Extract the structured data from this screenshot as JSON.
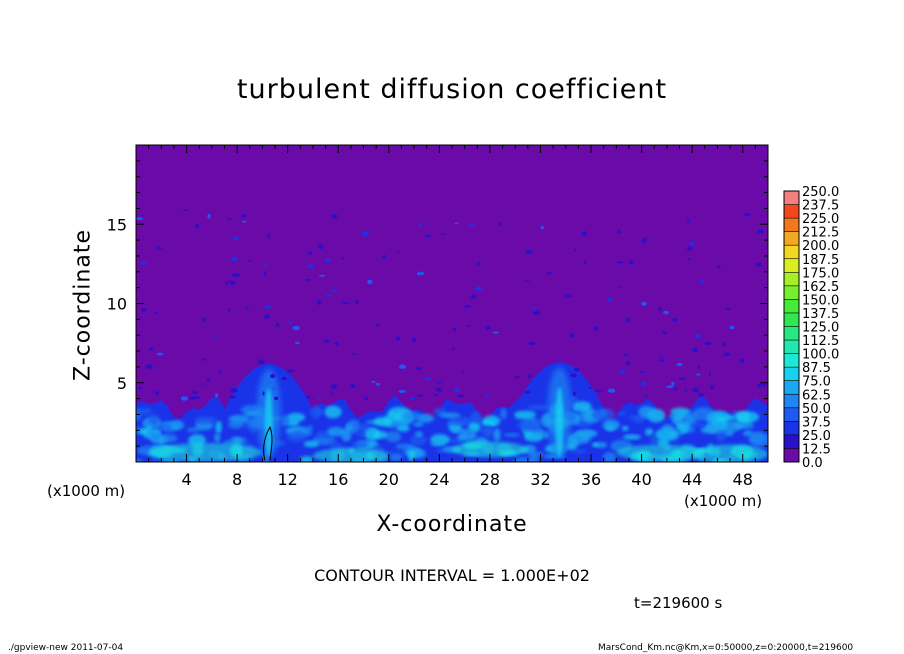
{
  "chart_data": {
    "type": "heatmap",
    "title": "turbulent diffusion coefficient",
    "xlabel": "X-coordinate",
    "ylabel": "Z-coordinate",
    "x_unit": "(x1000 m)",
    "xlim": [
      0,
      50
    ],
    "ylim": [
      0,
      20
    ],
    "x_ticks": [
      4,
      8,
      12,
      16,
      20,
      24,
      28,
      32,
      36,
      40,
      44,
      48
    ],
    "y_ticks": [
      5,
      10,
      15
    ],
    "colorbar": {
      "levels": [
        "0.0",
        "12.5",
        "25.0",
        "37.5",
        "50.0",
        "62.5",
        "75.0",
        "87.5",
        "100.0",
        "112.5",
        "125.0",
        "137.5",
        "150.0",
        "162.5",
        "175.0",
        "187.5",
        "200.0",
        "212.5",
        "225.0",
        "237.5",
        "250.0"
      ],
      "colors": [
        "#6a0aa8",
        "#2a10c8",
        "#1a33e8",
        "#1e5af0",
        "#1f86f2",
        "#1aa8f2",
        "#18d0f0",
        "#1ce8d8",
        "#22e8b0",
        "#28e880",
        "#30e850",
        "#48ea38",
        "#78ee30",
        "#a8ee28",
        "#d8ee20",
        "#f2d820",
        "#f2a820",
        "#f27820",
        "#f24820",
        "#f28080"
      ]
    },
    "features": {
      "background_value": 0,
      "boundary_layer_top_km": 3.8,
      "plume_peaks": [
        {
          "x": 10.5,
          "z": 6.2
        },
        {
          "x": 33.5,
          "z": 6.3
        }
      ]
    },
    "contour_interval": "CONTOUR INTERVAL = 1.000E+02",
    "time": "t=219600 s"
  },
  "footer": {
    "left": "./gpview-new   2011-07-04",
    "right": "MarsCond_Km.nc@Km,x=0:50000,z=0:20000,t=219600"
  }
}
